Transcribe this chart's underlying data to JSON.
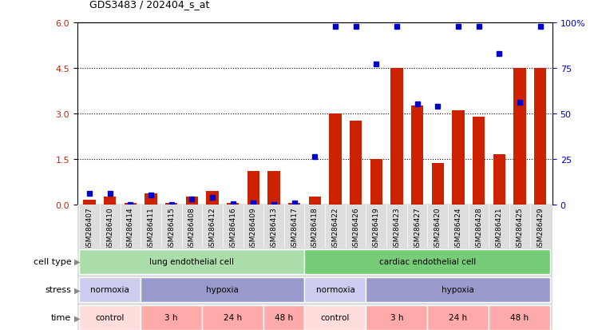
{
  "title": "GDS3483 / 202404_s_at",
  "samples": [
    "GSM286407",
    "GSM286410",
    "GSM286414",
    "GSM286411",
    "GSM286415",
    "GSM286408",
    "GSM286412",
    "GSM286416",
    "GSM286409",
    "GSM286413",
    "GSM286417",
    "GSM286418",
    "GSM286422",
    "GSM286426",
    "GSM286419",
    "GSM286423",
    "GSM286427",
    "GSM286420",
    "GSM286424",
    "GSM286428",
    "GSM286421",
    "GSM286425",
    "GSM286429"
  ],
  "transformed_count": [
    0.15,
    0.25,
    0.05,
    0.35,
    0.05,
    0.25,
    0.45,
    0.05,
    1.1,
    1.1,
    0.05,
    0.25,
    3.0,
    2.75,
    1.5,
    4.5,
    3.25,
    1.35,
    3.1,
    2.9,
    1.65,
    4.5,
    4.5
  ],
  "percentile_rank_pct": [
    6.0,
    6.0,
    0.0,
    5.0,
    0.0,
    3.0,
    3.7,
    0.5,
    0.8,
    0.0,
    0.8,
    26.0,
    98.0,
    98.0,
    77.0,
    98.0,
    55.0,
    54.0,
    98.0,
    98.0,
    83.0,
    56.0,
    98.0
  ],
  "bar_color": "#cc2200",
  "dot_color": "#0000cc",
  "chart_bg": "#ffffff",
  "left_ylim": [
    0,
    6
  ],
  "right_ylim": [
    0,
    100
  ],
  "left_yticks": [
    0,
    1.5,
    3.0,
    4.5,
    6.0
  ],
  "right_yticks": [
    0,
    25,
    50,
    75,
    100
  ],
  "right_yticklabels": [
    "0",
    "25",
    "50",
    "75",
    "100%"
  ],
  "grid_values": [
    1.5,
    3.0,
    4.5
  ],
  "row_bg_color": "#dddddd",
  "cell_type_groups": [
    {
      "label": "lung endothelial cell",
      "start": 0,
      "end": 10,
      "color": "#aaddaa"
    },
    {
      "label": "cardiac endothelial cell",
      "start": 11,
      "end": 22,
      "color": "#77cc77"
    }
  ],
  "stress_groups": [
    {
      "label": "normoxia",
      "start": 0,
      "end": 2,
      "color": "#ccccee"
    },
    {
      "label": "hypoxia",
      "start": 3,
      "end": 10,
      "color": "#9999cc"
    },
    {
      "label": "normoxia",
      "start": 11,
      "end": 13,
      "color": "#ccccee"
    },
    {
      "label": "hypoxia",
      "start": 14,
      "end": 22,
      "color": "#9999cc"
    }
  ],
  "time_groups": [
    {
      "label": "control",
      "start": 0,
      "end": 2,
      "color": "#ffdddd"
    },
    {
      "label": "3 h",
      "start": 3,
      "end": 5,
      "color": "#ffaaaa"
    },
    {
      "label": "24 h",
      "start": 6,
      "end": 8,
      "color": "#ffaaaa"
    },
    {
      "label": "48 h",
      "start": 9,
      "end": 10,
      "color": "#ffaaaa"
    },
    {
      "label": "control",
      "start": 11,
      "end": 13,
      "color": "#ffdddd"
    },
    {
      "label": "3 h",
      "start": 14,
      "end": 16,
      "color": "#ffaaaa"
    },
    {
      "label": "24 h",
      "start": 17,
      "end": 19,
      "color": "#ffaaaa"
    },
    {
      "label": "48 h",
      "start": 20,
      "end": 22,
      "color": "#ffaaaa"
    }
  ]
}
